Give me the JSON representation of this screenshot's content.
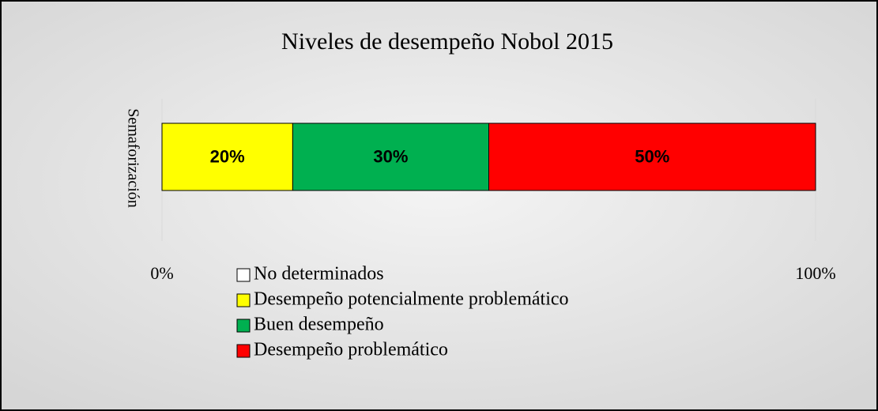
{
  "chart_data": {
    "type": "bar",
    "orientation": "horizontal",
    "stacked": true,
    "title": "Niveles  de desempeño Nobol 2015",
    "y_label": "Semaforización",
    "categories": [
      "Semaforización"
    ],
    "series": [
      {
        "name": "No determinados",
        "color": "#ffffff",
        "values": [
          0
        ]
      },
      {
        "name": "Desempeño potencialmente problemático",
        "color": "#ffff00",
        "values": [
          20
        ],
        "value_labels": [
          "20%"
        ]
      },
      {
        "name": "Buen desempeño",
        "color": "#00b050",
        "values": [
          30
        ],
        "value_labels": [
          "30%"
        ]
      },
      {
        "name": "Desempeño problemático",
        "color": "#ff0000",
        "values": [
          50
        ],
        "value_labels": [
          "50%"
        ]
      }
    ],
    "xlim": [
      0,
      100
    ],
    "xticks": [
      {
        "value": 0,
        "label": "0%"
      },
      {
        "value": 100,
        "label": "100%"
      }
    ],
    "grid": true
  }
}
